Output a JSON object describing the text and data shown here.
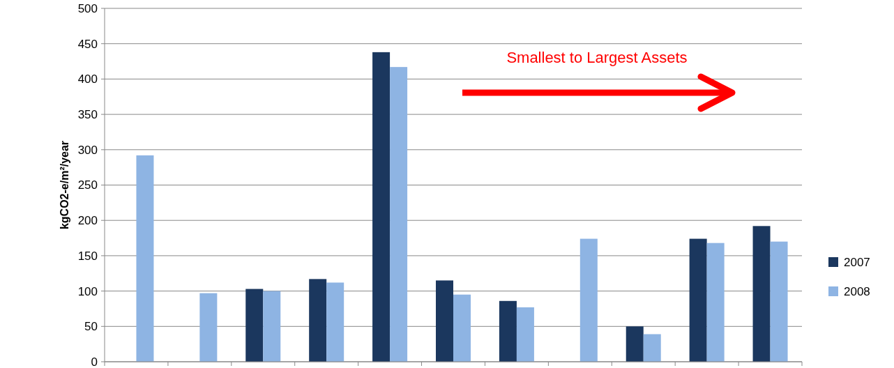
{
  "chart_data": {
    "type": "bar",
    "ylabel": "kgCO2-e/m²/year",
    "categories": [
      null,
      null,
      null,
      null,
      null,
      null,
      null,
      null,
      null,
      null,
      null
    ],
    "series": [
      {
        "name": "2007",
        "color": "#1b375e",
        "values": [
          null,
          null,
          103,
          117,
          438,
          115,
          86,
          null,
          50,
          174,
          192
        ]
      },
      {
        "name": "2008",
        "color": "#8eb4e3",
        "values": [
          292,
          97,
          100,
          112,
          417,
          95,
          77,
          174,
          39,
          168,
          170
        ]
      }
    ],
    "ylim": [
      0,
      500
    ],
    "yticks": [
      0,
      50,
      100,
      150,
      200,
      250,
      300,
      350,
      400,
      450,
      500
    ],
    "grid": "y",
    "legend": "right",
    "tick_labels": "y",
    "annotations": [
      "Smallest to Largest Assets"
    ]
  }
}
